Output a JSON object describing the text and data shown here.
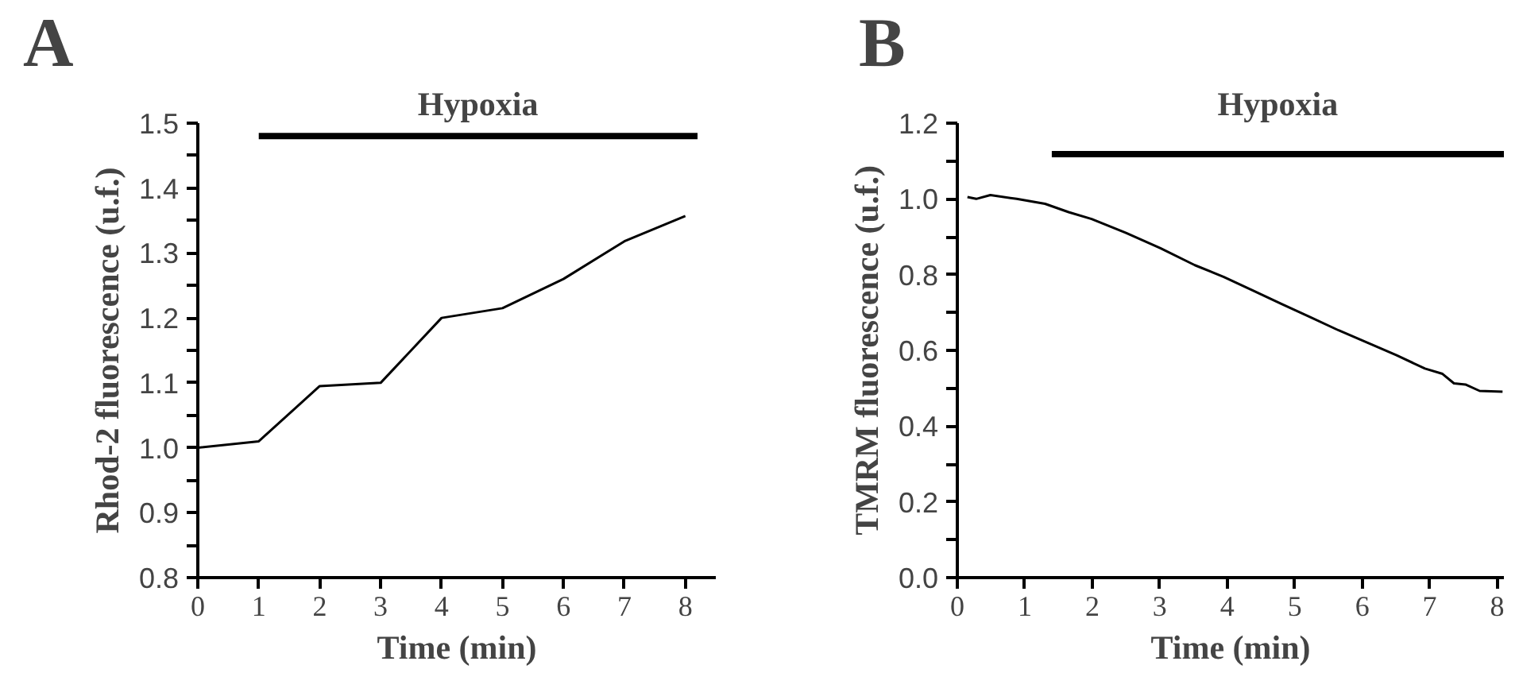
{
  "chart_data": [
    {
      "type": "line",
      "title": "A",
      "xlabel": "Time (min)",
      "ylabel": "Rhod-2 fluorescence (u.f.)",
      "x": [
        0,
        1,
        2,
        3,
        4,
        5,
        6,
        7,
        8
      ],
      "series": [
        {
          "color": "#000000",
          "values": [
            1.0,
            1.01,
            1.095,
            1.1,
            1.2,
            1.215,
            1.26,
            1.318,
            1.357
          ]
        },
        {
          "name": "Hypoxia",
          "color": "#000000",
          "x": [
            1,
            8.2
          ],
          "values": [
            1.48,
            1.48
          ]
        }
      ],
      "xlim": [
        0,
        8.5
      ],
      "xticks": [
        0,
        1,
        2,
        3,
        4,
        5,
        6,
        7,
        8
      ],
      "ylim": [
        0.8,
        1.5
      ],
      "yticks": [
        0.8,
        {
          "value": 0.85,
          "label": null
        },
        0.9,
        {
          "value": 0.95,
          "label": null
        },
        {
          "value": 1.0,
          "label": "1.0"
        },
        {
          "value": 1.05,
          "label": null
        },
        1.1,
        {
          "value": 1.15,
          "label": null
        },
        1.2,
        {
          "value": 1.25,
          "label": null
        },
        1.3,
        {
          "value": 1.35,
          "label": null
        },
        1.4,
        {
          "value": 1.45,
          "label": null
        },
        1.5
      ],
      "grid": false,
      "legend": false,
      "marker": "none",
      "line_style": "solid"
    },
    {
      "type": "line",
      "title": "B",
      "xlabel": "Time (min)",
      "ylabel": "TMRM fluorescence (u.f.)",
      "x": [
        0.15,
        0.28,
        0.49,
        0.88,
        1.3,
        1.65,
        1.99,
        2.5,
        3.01,
        3.52,
        3.95,
        4.38,
        4.8,
        5.23,
        5.65,
        6.08,
        6.51,
        6.93,
        7.19,
        7.36,
        7.53,
        7.74,
        8.08
      ],
      "series": [
        {
          "color": "#000000",
          "values": [
            1.005,
            1.0,
            1.01,
            1.0,
            0.987,
            0.965,
            0.947,
            0.91,
            0.87,
            0.825,
            0.794,
            0.758,
            0.723,
            0.688,
            0.653,
            0.62,
            0.587,
            0.552,
            0.538,
            0.513,
            0.51,
            0.493,
            0.491
          ]
        },
        {
          "name": "Hypoxia",
          "color": "#000000",
          "x": [
            1.4,
            8.1
          ],
          "values": [
            1.118,
            1.118
          ]
        }
      ],
      "xlim": [
        0,
        8.1
      ],
      "xticks": [
        0,
        1,
        2,
        3,
        4,
        5,
        6,
        7,
        8
      ],
      "ylim": [
        0,
        1.2
      ],
      "yticks": [
        {
          "value": 0.0,
          "label": "0.0"
        },
        {
          "value": 0.1,
          "label": null
        },
        0.2,
        {
          "value": 0.3,
          "label": null
        },
        0.4,
        {
          "value": 0.5,
          "label": null
        },
        0.6,
        {
          "value": 0.7,
          "label": null
        },
        0.8,
        {
          "value": 0.9,
          "label": null
        },
        {
          "value": 1.0,
          "label": "1.0"
        },
        {
          "value": 1.1,
          "label": null
        },
        1.2
      ],
      "grid": false,
      "legend": false,
      "marker": "none",
      "line_style": "solid"
    }
  ]
}
